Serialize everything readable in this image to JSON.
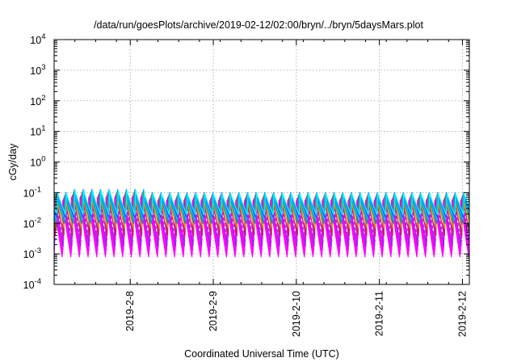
{
  "chart_data": {
    "type": "line",
    "title": "/data/run/goesPlots/archive/2019-02-12/02:00/bryn/../bryn/5daysMars.plot",
    "xlabel": "Coordinated Universal Time (UTC)",
    "ylabel": "cGy/day",
    "y_scale": "log",
    "ylim": [
      0.0001,
      10000
    ],
    "y_ticks": [
      {
        "value": 0.0001,
        "base": "10",
        "exp": "-4"
      },
      {
        "value": 0.001,
        "base": "10",
        "exp": "-3"
      },
      {
        "value": 0.01,
        "base": "10",
        "exp": "-2"
      },
      {
        "value": 0.1,
        "base": "10",
        "exp": "-1"
      },
      {
        "value": 1,
        "base": "10",
        "exp": "0"
      },
      {
        "value": 10,
        "base": "10",
        "exp": "1"
      },
      {
        "value": 100,
        "base": "10",
        "exp": "2"
      },
      {
        "value": 1000,
        "base": "10",
        "exp": "3"
      },
      {
        "value": 10000,
        "base": "10",
        "exp": "4"
      }
    ],
    "xlim": [
      "2019-02-07 02:00",
      "2019-02-12 02:00"
    ],
    "x_ticks": [
      "2019-2-8",
      "2019-2-9",
      "2019-2-10",
      "2019-2-11",
      "2019-2-12"
    ],
    "x_tick_dates": [
      "2019-02-08 00:00",
      "2019-02-09 00:00",
      "2019-02-10 00:00",
      "2019-02-11 00:00",
      "2019-02-12 00:00"
    ],
    "grid": true,
    "pattern": {
      "period_hours": 2.5,
      "peak_range_cGy_per_day": [
        0.05,
        0.1
      ],
      "trough_range_cGy_per_day": [
        0.0008,
        0.02
      ]
    },
    "series": [
      {
        "color": "#ff00ff",
        "peak": 0.055,
        "trough": 0.0008,
        "dash": ""
      },
      {
        "color": "#ff00ff",
        "peak": 0.05,
        "trough": 0.001,
        "dash": ""
      },
      {
        "color": "#ff00ff",
        "peak": 0.06,
        "trough": 0.0013,
        "dash": ""
      },
      {
        "color": "#8a2be2",
        "peak": 0.065,
        "trough": 0.0018,
        "dash": ""
      },
      {
        "color": "#ff00ff",
        "peak": 0.07,
        "trough": 0.0025,
        "dash": "4 3"
      },
      {
        "color": "#c02060",
        "peak": 0.075,
        "trough": 0.004,
        "dash": ""
      },
      {
        "color": "#d0a000",
        "peak": 0.08,
        "trough": 0.007,
        "dash": ""
      },
      {
        "color": "#00a0a0",
        "peak": 0.085,
        "trough": 0.01,
        "dash": ""
      },
      {
        "color": "#00c0ff",
        "peak": 0.09,
        "trough": 0.013,
        "dash": ""
      },
      {
        "color": "#1e50ff",
        "peak": 0.1,
        "trough": 0.016,
        "dash": ""
      },
      {
        "color": "#00ffff",
        "peak": 0.095,
        "trough": 0.019,
        "dash": ""
      }
    ]
  }
}
